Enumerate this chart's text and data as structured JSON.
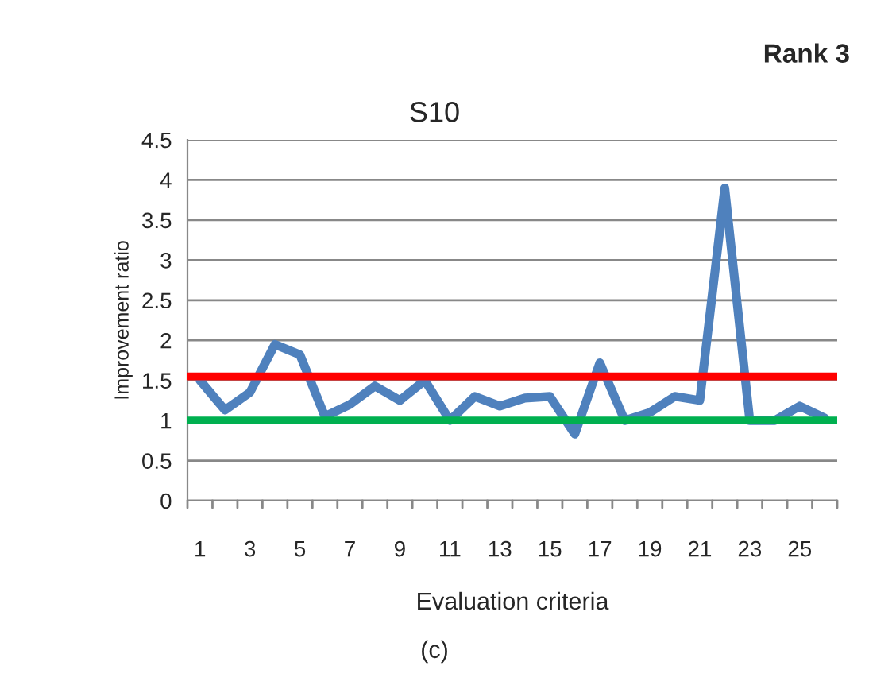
{
  "chart_data": {
    "type": "line",
    "title": "S10",
    "xlabel": "Evaluation criteria",
    "ylabel": "Improvement ratio",
    "annotations": [
      "Rank 3",
      "(c)"
    ],
    "categories": [
      "1",
      null,
      "3",
      null,
      "5",
      null,
      "7",
      null,
      "9",
      null,
      "11",
      null,
      "13",
      null,
      "15",
      null,
      "17",
      null,
      "19",
      null,
      "21",
      null,
      "23",
      null,
      "25",
      null
    ],
    "series": [
      {
        "color": "#4f81bd",
        "values": [
          1.5,
          1.13,
          1.35,
          1.95,
          1.82,
          1.05,
          1.2,
          1.43,
          1.25,
          1.5,
          1.0,
          1.3,
          1.18,
          1.28,
          1.3,
          0.83,
          1.72,
          1.0,
          1.1,
          1.3,
          1.25,
          3.9,
          1.0,
          1.0,
          1.18,
          1.03
        ]
      }
    ],
    "ylim": [
      0,
      4.5
    ],
    "yticks": [
      0,
      0.5,
      1,
      1.5,
      2,
      2.5,
      3,
      3.5,
      4,
      4.5
    ],
    "ref_lines": [
      {
        "axis": "y",
        "value": 1.55,
        "label": null,
        "color": "#ff0000"
      },
      {
        "axis": "y",
        "value": 1,
        "label": null,
        "color": "#00b050"
      }
    ],
    "grid": "y",
    "legend": false,
    "marker": "none",
    "line_style": "solid"
  }
}
